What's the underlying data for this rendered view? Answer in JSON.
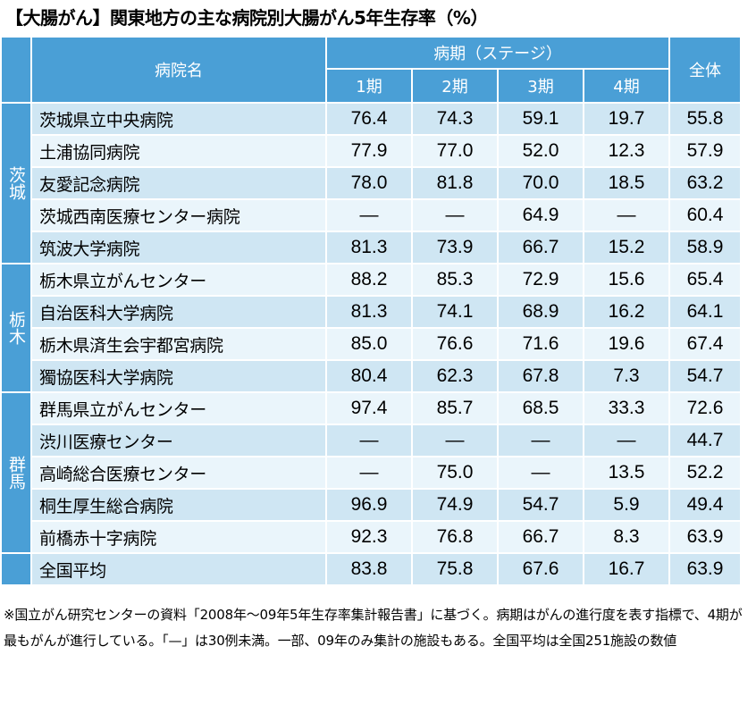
{
  "title": "【大腸がん】関東地方の主な病院別大腸がん5年生存率（%）",
  "header": {
    "hospital_name": "病院名",
    "stage_group": "病期（ステージ）",
    "stages": [
      "1期",
      "2期",
      "3期",
      "4期"
    ],
    "total": "全体"
  },
  "prefectures": {
    "ibaraki": "茨城",
    "tochigi": "栃木",
    "gunma": "群馬"
  },
  "rows": [
    {
      "name": "茨城県立中央病院",
      "s1": "76.4",
      "s2": "74.3",
      "s3": "59.1",
      "s4": "19.7",
      "total": "55.8"
    },
    {
      "name": "土浦協同病院",
      "s1": "77.9",
      "s2": "77.0",
      "s3": "52.0",
      "s4": "12.3",
      "total": "57.9"
    },
    {
      "name": "友愛記念病院",
      "s1": "78.0",
      "s2": "81.8",
      "s3": "70.0",
      "s4": "18.5",
      "total": "63.2"
    },
    {
      "name": "茨城西南医療センター病院",
      "s1": "—",
      "s2": "—",
      "s3": "64.9",
      "s4": "—",
      "total": "60.4"
    },
    {
      "name": "筑波大学病院",
      "s1": "81.3",
      "s2": "73.9",
      "s3": "66.7",
      "s4": "15.2",
      "total": "58.9"
    },
    {
      "name": "栃木県立がんセンター",
      "s1": "88.2",
      "s2": "85.3",
      "s3": "72.9",
      "s4": "15.6",
      "total": "65.4"
    },
    {
      "name": "自治医科大学病院",
      "s1": "81.3",
      "s2": "74.1",
      "s3": "68.9",
      "s4": "16.2",
      "total": "64.1"
    },
    {
      "name": "栃木県済生会宇都宮病院",
      "s1": "85.0",
      "s2": "76.6",
      "s3": "71.6",
      "s4": "19.6",
      "total": "67.4"
    },
    {
      "name": "獨協医科大学病院",
      "s1": "80.4",
      "s2": "62.3",
      "s3": "67.8",
      "s4": "7.3",
      "total": "54.7"
    },
    {
      "name": "群馬県立がんセンター",
      "s1": "97.4",
      "s2": "85.7",
      "s3": "68.5",
      "s4": "33.3",
      "total": "72.6"
    },
    {
      "name": "渋川医療センター",
      "s1": "—",
      "s2": "—",
      "s3": "—",
      "s4": "—",
      "total": "44.7"
    },
    {
      "name": "高崎総合医療センター",
      "s1": "—",
      "s2": "75.0",
      "s3": "—",
      "s4": "13.5",
      "total": "52.2"
    },
    {
      "name": "桐生厚生総合病院",
      "s1": "96.9",
      "s2": "74.9",
      "s3": "54.7",
      "s4": "5.9",
      "total": "49.4"
    },
    {
      "name": "前橋赤十字病院",
      "s1": "92.3",
      "s2": "76.8",
      "s3": "66.7",
      "s4": "8.3",
      "total": "63.9"
    }
  ],
  "national": {
    "name": "全国平均",
    "s1": "83.8",
    "s2": "75.8",
    "s3": "67.6",
    "s4": "16.7",
    "total": "63.9"
  },
  "note": "※国立がん研究センターの資料「2008年～09年5年生存率集計報告書」に基づく。病期はがんの進行度を表す指標で、4期が最もがんが進行している。「—」は30例未満。一部、09年のみ集計の施設もある。全国平均は全国251施設の数値"
}
